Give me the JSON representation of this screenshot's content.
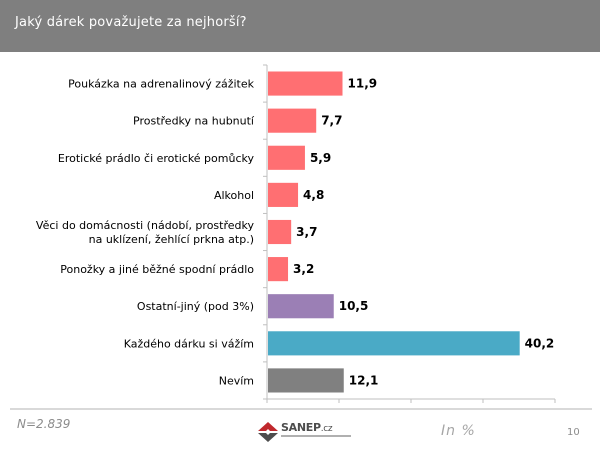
{
  "header": {
    "title": "Jaký dárek považujete za nejhorší?"
  },
  "chart_data": {
    "type": "bar",
    "orientation": "horizontal",
    "title": "Jaký dárek považujete za nejhorší?",
    "categories": [
      [
        "Poukázka na adrenalinový  zážitek"
      ],
      [
        "Prostředky na hubnutí"
      ],
      [
        "Erotické  prádlo či erotické  pomůcky"
      ],
      [
        "Alkohol"
      ],
      [
        "Věci do domácnosti (nádobí, prostředky",
        "na uklízení,  žehlící  prkna atp.)"
      ],
      [
        "Ponožky a jiné běžné spodní prádlo"
      ],
      [
        "Ostatní-jiný (pod 3%)"
      ],
      [
        "Každého dárku si vážím"
      ],
      [
        "Nevím"
      ]
    ],
    "values": [
      11.9,
      7.7,
      5.9,
      4.8,
      3.7,
      3.2,
      10.5,
      40.2,
      12.1
    ],
    "value_labels": [
      "11,9",
      "7,7",
      "5,9",
      "4,8",
      "3,7",
      "3,2",
      "10,5",
      "40,2",
      "12,1"
    ],
    "colors": [
      "#ff6f72",
      "#ff6f72",
      "#ff6f72",
      "#ff6f72",
      "#ff6f72",
      "#ff6f72",
      "#9b7fb5",
      "#4aaac6",
      "#808080"
    ],
    "xlim": [
      0,
      46
    ],
    "x_ticks": 4,
    "xlabel": "",
    "ylabel": "",
    "grid": false,
    "legend": "none"
  },
  "footer": {
    "sample": "N=2.839",
    "unit": "In %",
    "page": "10",
    "logo_text": "SANEP",
    "logo_suffix": ".cz"
  },
  "colors": {
    "header_bg": "#7f7f7f",
    "axis": "#bfbfbf"
  }
}
